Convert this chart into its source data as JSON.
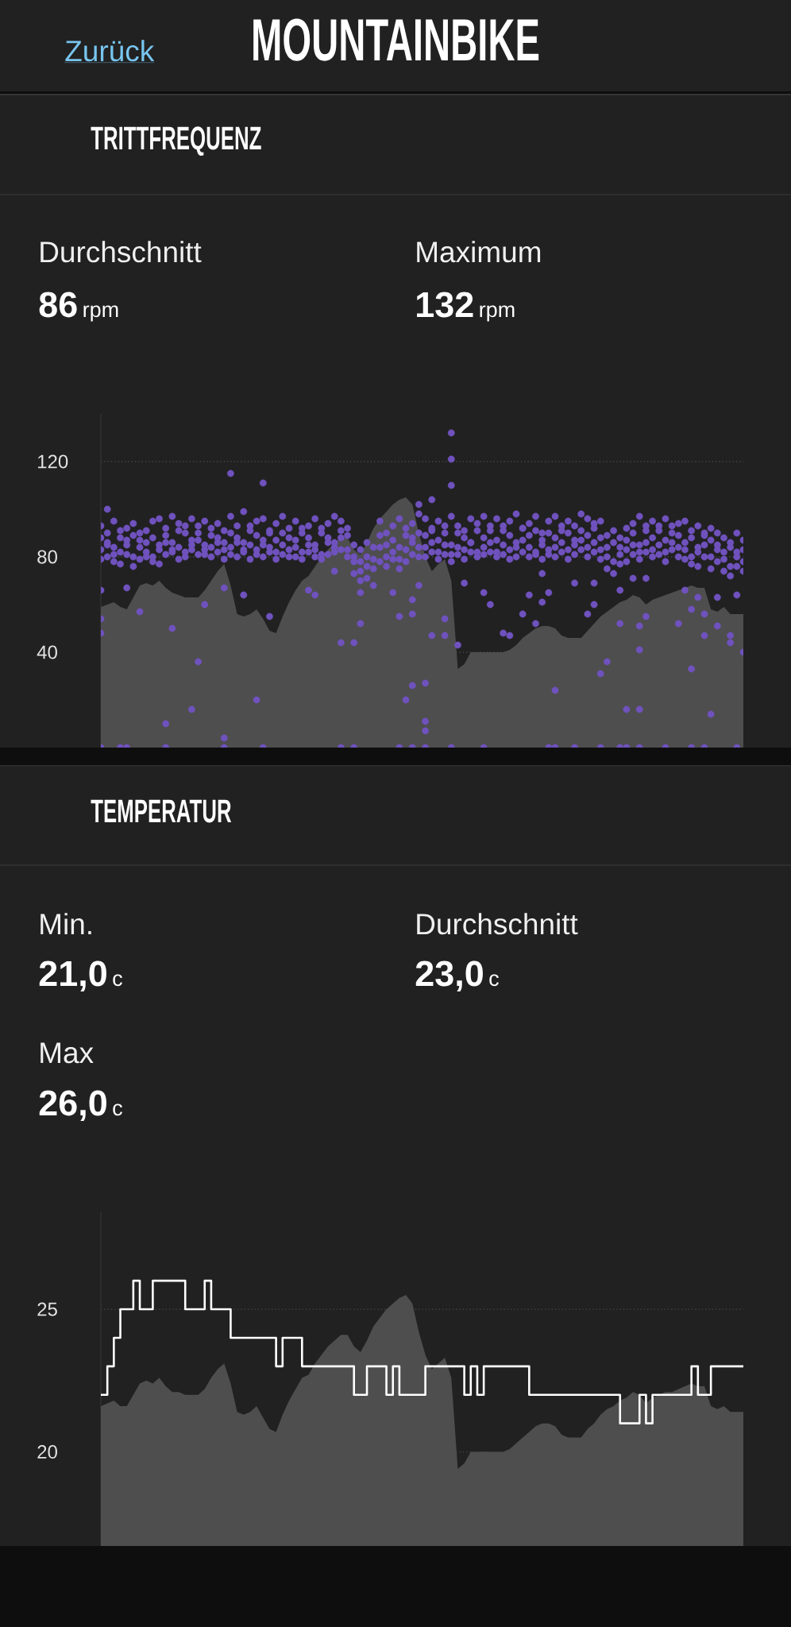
{
  "chart_data": [
    {
      "type": "scatter",
      "title": "TRITTFREQUENZ",
      "annotations": [
        "Zurück",
        "MOUNTAINBIKE",
        "Durchschnitt",
        "86",
        "rpm",
        "Maximum",
        "132",
        "rpm"
      ],
      "categories": [
        null,
        null,
        null,
        null,
        null,
        null,
        null,
        null,
        null,
        null,
        null,
        null,
        null,
        null,
        null,
        null,
        null,
        null,
        null,
        null,
        null,
        null,
        null,
        null,
        null,
        null,
        null,
        null,
        null,
        null,
        null,
        null,
        null,
        null,
        null,
        null,
        null,
        null,
        null,
        null,
        null,
        null,
        null,
        null,
        null,
        null,
        null,
        null,
        null,
        null,
        null,
        null,
        null,
        null,
        null,
        null,
        null,
        null,
        null,
        null,
        null,
        null,
        null,
        null,
        null,
        null,
        null,
        null,
        null,
        null,
        null,
        null,
        null,
        null,
        null,
        null,
        null,
        null,
        null,
        null,
        null,
        null,
        null,
        null,
        null,
        null,
        null,
        null,
        null,
        null,
        null,
        null,
        null,
        null,
        null,
        null,
        null,
        null,
        null,
        null
      ],
      "series": [
        {
          "type": "area",
          "color": "#4e4e4e",
          "values": [
            59,
            60,
            61,
            59,
            58,
            63,
            68,
            69,
            68,
            70,
            67,
            65,
            64,
            63,
            63,
            63,
            66,
            70,
            74,
            77,
            68,
            56,
            55,
            56,
            58,
            54,
            49,
            48,
            55,
            61,
            66,
            70,
            72,
            76,
            80,
            83,
            86,
            88,
            88,
            83,
            81,
            86,
            92,
            96,
            99,
            102,
            104,
            105,
            102,
            90,
            80,
            74,
            77,
            79,
            70,
            33,
            35,
            40,
            40,
            40,
            40,
            40,
            40,
            41,
            43,
            46,
            48,
            50,
            51,
            51,
            50,
            47,
            46,
            46,
            46,
            49,
            52,
            55,
            57,
            59,
            61,
            62,
            64,
            63,
            60,
            62,
            63,
            64,
            65,
            66,
            67,
            68,
            67,
            67,
            58,
            57,
            59,
            56,
            56,
            56
          ]
        },
        {
          "color": "#6f52bd",
          "marker": "circle",
          "values": [
            93,
            90,
            95,
            88,
            92,
            94,
            87,
            91,
            95,
            96,
            92,
            97,
            94,
            90,
            96,
            93,
            95,
            89,
            94,
            91,
            97,
            93,
            99,
            91,
            95,
            96,
            90,
            94,
            97,
            92,
            95,
            90,
            93,
            96,
            92,
            94,
            97,
            95,
            92,
            85,
            83,
            86,
            84,
            95,
            90,
            93,
            96,
            89,
            94,
            98,
            96,
            92,
            95,
            90,
            97,
            93,
            91,
            96,
            94,
            97,
            93,
            96,
            91,
            95,
            98,
            92,
            94,
            97,
            90,
            95,
            97,
            91,
            95,
            93,
            98,
            96,
            92,
            95,
            89,
            91,
            88,
            92,
            94,
            97,
            91,
            95,
            93,
            96,
            90,
            94,
            95,
            91,
            93,
            89,
            92,
            90,
            88,
            86,
            90,
            87
          ]
        },
        {
          "color": "#6f52bd",
          "marker": "circle",
          "values": [
            88,
            86,
            84,
            91,
            85,
            89,
            90,
            86,
            88,
            83,
            89,
            86,
            91,
            93,
            87,
            90,
            85,
            92,
            88,
            86,
            90,
            88,
            86,
            93,
            89,
            85,
            91,
            87,
            90,
            88,
            87,
            92,
            88,
            85,
            90,
            88,
            86,
            91,
            89,
            80,
            78,
            80,
            75,
            89,
            85,
            87,
            84,
            92,
            88,
            90,
            89,
            91,
            87,
            93,
            85,
            90,
            88,
            86,
            91,
            88,
            91,
            87,
            93,
            89,
            86,
            92,
            89,
            91,
            87,
            90,
            88,
            93,
            90,
            87,
            91,
            89,
            94,
            88,
            84,
            86,
            84,
            87,
            90,
            85,
            93,
            88,
            91,
            87,
            93,
            89,
            86,
            88,
            84,
            90,
            87,
            85,
            82,
            84,
            80,
            83
          ]
        },
        {
          "color": "#6f52bd",
          "marker": "circle",
          "values": [
            83,
            85,
            81,
            82,
            87,
            80,
            84,
            82,
            80,
            85,
            86,
            83,
            84,
            82,
            85,
            87,
            81,
            84,
            86,
            83,
            84,
            86,
            82,
            85,
            83,
            87,
            84,
            82,
            85,
            83,
            84,
            82,
            85,
            83,
            81,
            86,
            84,
            88,
            83,
            78,
            74,
            76,
            79,
            84,
            80,
            82,
            79,
            83,
            86,
            84,
            84,
            86,
            82,
            85,
            81,
            84,
            83,
            86,
            82,
            84,
            86,
            82,
            85,
            83,
            84,
            87,
            84,
            82,
            85,
            83,
            84,
            86,
            83,
            85,
            87,
            84,
            86,
            83,
            80,
            78,
            81,
            83,
            85,
            82,
            86,
            83,
            85,
            82,
            86,
            84,
            83,
            80,
            82,
            85,
            80,
            83,
            79,
            76,
            82,
            78
          ]
        },
        {
          "color": "#6f52bd",
          "marker": "circle",
          "values": [
            79,
            80,
            78,
            77,
            81,
            76,
            79,
            80,
            78,
            77,
            81,
            82,
            79,
            80,
            83,
            81,
            83,
            80,
            82,
            79,
            81,
            80,
            83,
            79,
            81,
            80,
            82,
            79,
            81,
            80,
            80,
            79,
            82,
            80,
            79,
            81,
            82,
            83,
            80,
            73,
            70,
            71,
            68,
            78,
            76,
            79,
            75,
            78,
            81,
            80,
            80,
            82,
            79,
            81,
            78,
            81,
            79,
            82,
            80,
            81,
            82,
            80,
            81,
            79,
            80,
            82,
            80,
            81,
            79,
            81,
            80,
            82,
            79,
            81,
            83,
            80,
            82,
            79,
            75,
            73,
            77,
            78,
            81,
            79,
            82,
            80,
            81,
            78,
            83,
            80,
            79,
            77,
            76,
            80,
            75,
            78,
            74,
            72,
            76,
            74
          ]
        },
        {
          "color": "#6f52bd",
          "marker": "circle",
          "values": [
            66,
            100,
            null,
            null,
            67,
            null,
            57,
            null,
            null,
            null,
            10,
            50,
            null,
            null,
            16,
            36,
            60,
            null,
            null,
            4,
            115,
            null,
            64,
            null,
            20,
            111,
            55,
            null,
            null,
            null,
            null,
            null,
            66,
            64,
            null,
            null,
            74,
            44,
            null,
            44,
            52,
            null,
            null,
            null,
            null,
            65,
            55,
            20,
            56,
            102,
            27,
            104,
            null,
            54,
            132,
            43,
            69,
            null,
            null,
            65,
            60,
            null,
            48,
            47,
            null,
            56,
            64,
            52,
            61,
            65,
            24,
            null,
            null,
            69,
            null,
            56,
            60,
            31,
            36,
            null,
            52,
            16,
            71,
            16,
            71,
            null,
            null,
            null,
            null,
            52,
            66,
            33,
            63,
            47,
            14,
            51,
            null,
            47,
            64,
            40
          ]
        },
        {
          "color": "#6f52bd",
          "marker": "circle",
          "values": [
            54,
            null,
            null,
            null,
            null,
            null,
            null,
            null,
            null,
            null,
            null,
            null,
            null,
            null,
            null,
            null,
            null,
            null,
            null,
            67,
            null,
            null,
            null,
            null,
            null,
            null,
            null,
            null,
            null,
            null,
            null,
            null,
            null,
            null,
            null,
            null,
            null,
            null,
            null,
            null,
            65,
            null,
            null,
            null,
            null,
            null,
            null,
            null,
            62,
            68,
            11,
            47,
            null,
            47,
            121,
            null,
            null,
            null,
            null,
            null,
            null,
            null,
            null,
            null,
            null,
            null,
            null,
            null,
            73,
            null,
            null,
            null,
            null,
            null,
            null,
            null,
            69,
            null,
            null,
            null,
            66,
            null,
            null,
            41,
            55,
            null,
            null,
            null,
            null,
            null,
            null,
            58,
            null,
            56,
            null,
            63,
            null,
            44,
            null,
            null
          ]
        },
        {
          "color": "#6f52bd",
          "marker": "circle",
          "values": [
            48,
            null,
            null,
            null,
            null,
            null,
            null,
            null,
            null,
            null,
            null,
            null,
            null,
            null,
            null,
            null,
            null,
            null,
            null,
            null,
            null,
            null,
            null,
            null,
            null,
            null,
            null,
            null,
            null,
            null,
            null,
            null,
            null,
            null,
            null,
            null,
            null,
            null,
            null,
            null,
            null,
            null,
            null,
            null,
            null,
            null,
            null,
            null,
            26,
            null,
            7,
            null,
            null,
            null,
            110,
            null,
            null,
            null,
            null,
            null,
            null,
            null,
            null,
            null,
            null,
            null,
            null,
            null,
            null,
            null,
            null,
            null,
            null,
            null,
            null,
            null,
            null,
            null,
            null,
            null,
            null,
            null,
            null,
            51,
            null,
            null,
            null,
            null,
            null,
            null,
            null,
            null,
            null,
            null,
            null,
            null,
            null,
            null,
            null,
            null
          ]
        },
        {
          "color": "#6f52bd",
          "marker": "circle",
          "values": [
            0,
            null,
            null,
            0,
            0,
            null,
            null,
            null,
            null,
            null,
            0,
            null,
            null,
            null,
            null,
            null,
            null,
            null,
            null,
            0,
            null,
            null,
            null,
            null,
            null,
            0,
            null,
            null,
            null,
            null,
            null,
            null,
            null,
            null,
            null,
            null,
            null,
            0,
            null,
            0,
            null,
            null,
            null,
            null,
            null,
            null,
            0,
            null,
            0,
            null,
            0,
            null,
            null,
            null,
            0,
            null,
            null,
            null,
            null,
            0,
            null,
            null,
            null,
            null,
            null,
            null,
            null,
            null,
            null,
            0,
            0,
            null,
            null,
            0,
            null,
            null,
            null,
            0,
            null,
            null,
            0,
            0,
            null,
            0,
            null,
            null,
            null,
            0,
            null,
            null,
            null,
            0,
            null,
            0,
            null,
            null,
            null,
            null,
            0,
            null
          ]
        }
      ],
      "ylim": [
        0,
        140
      ],
      "yticks": [
        40,
        80,
        120
      ],
      "grid": "y",
      "tick_labels": "y"
    },
    {
      "type": "step",
      "title": "TEMPERATUR",
      "annotations": [
        "Min.",
        "21,0",
        "c",
        "Durchschnitt",
        "23,0",
        "c",
        "Max",
        "26,0",
        "c"
      ],
      "categories": [
        null,
        null,
        null,
        null,
        null,
        null,
        null,
        null,
        null,
        null,
        null,
        null,
        null,
        null,
        null,
        null,
        null,
        null,
        null,
        null,
        null,
        null,
        null,
        null,
        null,
        null,
        null,
        null,
        null,
        null,
        null,
        null,
        null,
        null,
        null,
        null,
        null,
        null,
        null,
        null,
        null,
        null,
        null,
        null,
        null,
        null,
        null,
        null,
        null,
        null,
        null,
        null,
        null,
        null,
        null,
        null,
        null,
        null,
        null,
        null,
        null,
        null,
        null,
        null,
        null,
        null,
        null,
        null,
        null,
        null,
        null,
        null,
        null,
        null,
        null,
        null,
        null,
        null,
        null,
        null,
        null,
        null,
        null,
        null,
        null,
        null,
        null,
        null,
        null,
        null,
        null,
        null,
        null,
        null,
        null,
        null,
        null,
        null,
        null,
        null
      ],
      "series": [
        {
          "type": "area",
          "color": "#4e4e4e",
          "values": [
            21.6,
            21.7,
            21.8,
            21.6,
            21.6,
            22.0,
            22.4,
            22.5,
            22.4,
            22.6,
            22.3,
            22.1,
            22.1,
            22.0,
            22.0,
            22.0,
            22.2,
            22.6,
            22.9,
            23.1,
            22.4,
            21.4,
            21.3,
            21.4,
            21.6,
            21.2,
            20.8,
            20.7,
            21.3,
            21.8,
            22.2,
            22.6,
            22.7,
            23.1,
            23.4,
            23.7,
            23.9,
            24.1,
            24.1,
            23.7,
            23.5,
            23.9,
            24.4,
            24.7,
            25.0,
            25.2,
            25.4,
            25.5,
            25.2,
            24.2,
            23.4,
            22.9,
            23.1,
            23.3,
            22.6,
            19.4,
            19.6,
            20.0,
            20.0,
            20.0,
            20.0,
            20.0,
            20.0,
            20.1,
            20.3,
            20.5,
            20.7,
            20.9,
            21.0,
            21.0,
            20.9,
            20.6,
            20.5,
            20.5,
            20.5,
            20.8,
            21.0,
            21.3,
            21.5,
            21.6,
            21.8,
            21.9,
            22.1,
            22.0,
            21.7,
            21.9,
            22.0,
            22.1,
            22.1,
            22.2,
            22.3,
            22.4,
            22.3,
            22.3,
            21.6,
            21.5,
            21.6,
            21.4,
            21.4,
            21.4
          ]
        },
        {
          "color": "#ffffff",
          "values": [
            22,
            23,
            24,
            25,
            25,
            26,
            25,
            25,
            26,
            26,
            26,
            26,
            26,
            25,
            25,
            25,
            26,
            25,
            25,
            25,
            24,
            24,
            24,
            24,
            24,
            24,
            24,
            23,
            24,
            24,
            24,
            23,
            23,
            23,
            23,
            23,
            23,
            23,
            23,
            22,
            22,
            23,
            23,
            23,
            22,
            23,
            22,
            22,
            22,
            22,
            23,
            23,
            23,
            23,
            23,
            23,
            22,
            23,
            22,
            23,
            23,
            23,
            23,
            23,
            23,
            23,
            22,
            22,
            22,
            22,
            22,
            22,
            22,
            22,
            22,
            22,
            22,
            22,
            22,
            22,
            21,
            21,
            21,
            22,
            21,
            22,
            22,
            22,
            22,
            22,
            22,
            23,
            22,
            22,
            23,
            23,
            23,
            23,
            23,
            23
          ]
        }
      ],
      "ylim": [
        16.7,
        28.4
      ],
      "yticks": [
        20,
        25
      ],
      "grid": "y",
      "tick_labels": "y"
    }
  ]
}
